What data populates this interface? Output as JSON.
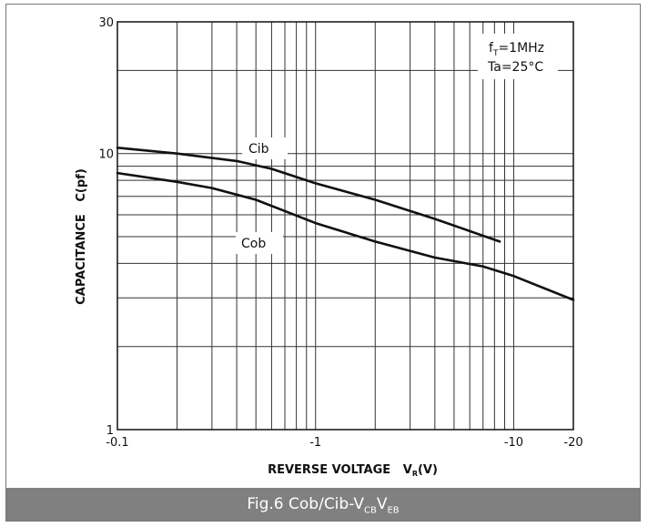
{
  "chart_data": {
    "type": "line",
    "xlabel": {
      "main": "REVERSE VOLTAGE   V",
      "sub": "R",
      "unit": "(V)"
    },
    "ylabel": "CAPACITANCE   C(pf)",
    "x_scale": "log",
    "y_scale": "log",
    "xlim": [
      0.1,
      20
    ],
    "ylim": [
      1,
      30
    ],
    "x_ticks": [
      {
        "value": 0.1,
        "label": "-0.1"
      },
      {
        "value": 1,
        "label": "-1"
      },
      {
        "value": 10,
        "label": "-10"
      },
      {
        "value": 20,
        "label": "-20"
      }
    ],
    "y_ticks": [
      {
        "value": 1,
        "label": "1"
      },
      {
        "value": 10,
        "label": "10"
      },
      {
        "value": 30,
        "label": "30"
      }
    ],
    "x_grid": [
      0.2,
      0.3,
      0.4,
      0.5,
      0.6,
      0.7,
      0.8,
      0.9,
      1,
      2,
      3,
      4,
      5,
      6,
      7,
      8,
      9,
      10,
      20
    ],
    "y_grid": [
      2,
      3,
      4,
      5,
      6,
      7,
      8,
      9,
      10,
      20,
      30
    ],
    "grid": true,
    "series": [
      {
        "name": "Cib",
        "x": [
          0.1,
          0.2,
          0.4,
          0.6,
          1.0,
          2.0,
          4.0,
          8.5
        ],
        "y": [
          10.5,
          10.0,
          9.4,
          8.8,
          7.8,
          6.8,
          5.8,
          4.8
        ]
      },
      {
        "name": "Cob",
        "x": [
          0.1,
          0.2,
          0.3,
          0.5,
          1.0,
          2.0,
          4.0,
          7.0,
          10.0,
          20.0
        ],
        "y": [
          8.5,
          7.9,
          7.5,
          6.8,
          5.6,
          4.8,
          4.2,
          3.9,
          3.6,
          2.95
        ]
      }
    ],
    "annotations": {
      "cib_label": "Cib",
      "cob_label": "Cob",
      "freq": {
        "main": "f",
        "sub": "T",
        "rest": "=1MHz"
      },
      "temp": "Ta=25°C"
    }
  },
  "caption": {
    "prefix": "Fig.6 Cob/Cib-V",
    "sub1": "CB",
    "mid": "V",
    "sub2": "EB"
  },
  "colors": {
    "line": "#111111",
    "grid": "#333333",
    "caption_bg": "#808080",
    "caption_text": "#ffffff"
  }
}
